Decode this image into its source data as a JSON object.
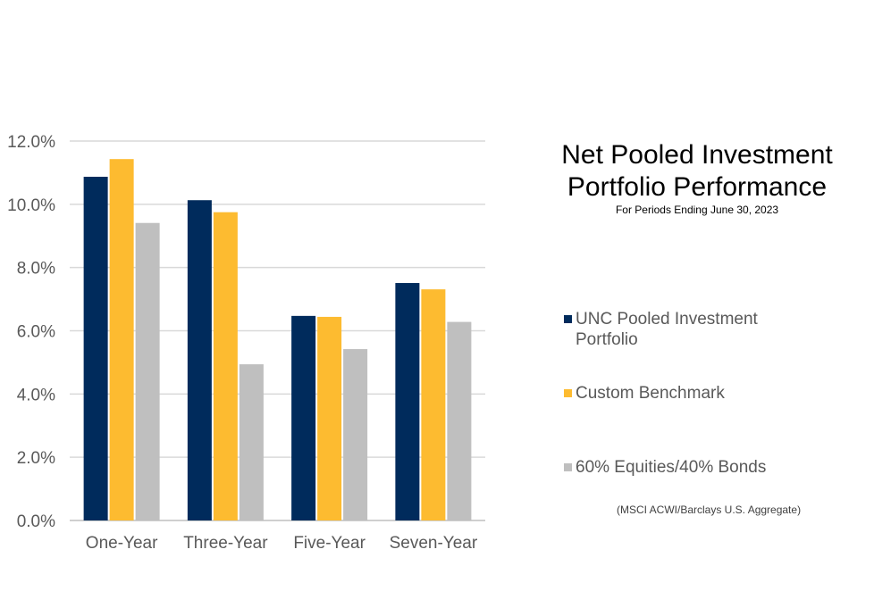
{
  "chart_data": {
    "type": "bar",
    "title": "Net Pooled Investment Portfolio Performance",
    "subtitle": "For Periods Ending June 30, 2023",
    "categories": [
      "One-Year",
      "Three-Year",
      "Five-Year",
      "Seven-Year"
    ],
    "series": [
      {
        "name": "UNC Pooled Investment Portfolio",
        "color": "#002b5c",
        "values": [
          10.87,
          10.13,
          6.47,
          7.51
        ]
      },
      {
        "name": "Custom Benchmark",
        "color": "#fdbb30",
        "values": [
          11.43,
          9.75,
          6.44,
          7.31
        ]
      },
      {
        "name": "60% Equities/40% Bonds",
        "color": "#bfbfbf",
        "values": [
          9.41,
          4.94,
          5.42,
          6.28
        ]
      }
    ],
    "ylim": [
      0,
      12
    ],
    "yticks": [
      "0.0%",
      "2.0%",
      "4.0%",
      "6.0%",
      "8.0%",
      "10.0%",
      "12.0%"
    ],
    "grid": true,
    "legend_position": "right",
    "legend_note": "(MSCI ACWI/Barclays U.S. Aggregate)"
  }
}
